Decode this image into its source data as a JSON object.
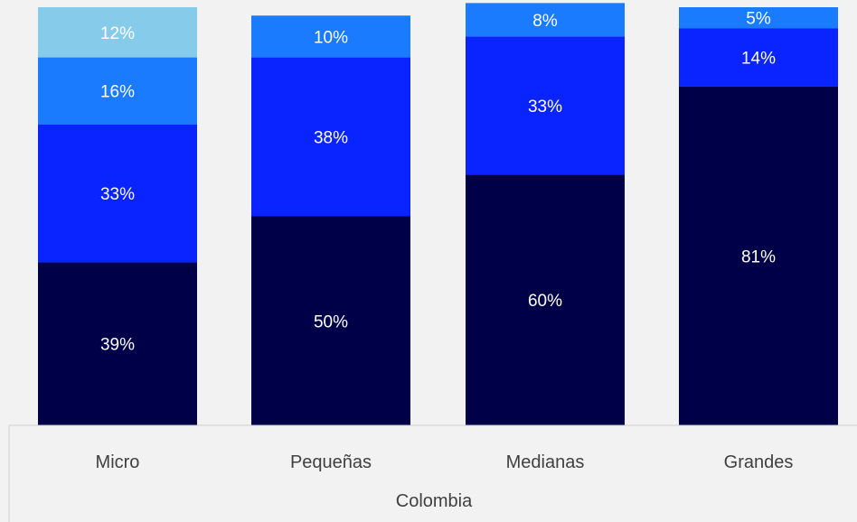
{
  "chart_data": {
    "type": "bar",
    "stacked": true,
    "categories": [
      "Micro",
      "Pequeñas",
      "Medianas",
      "Grandes"
    ],
    "group_label": "Colombia",
    "series": [
      {
        "color": "#000048",
        "values": [
          39,
          50,
          60,
          81
        ],
        "labels": [
          "39%",
          "50%",
          "60%",
          "81%"
        ]
      },
      {
        "color": "#0a24ff",
        "values": [
          33,
          38,
          33,
          14
        ],
        "labels": [
          "33%",
          "38%",
          "33%",
          "14%"
        ]
      },
      {
        "color": "#1a7bff",
        "values": [
          16,
          10,
          8,
          5
        ],
        "labels": [
          "16%",
          "10%",
          "8%",
          "5%"
        ]
      },
      {
        "color": "#87cbeb",
        "values": [
          12,
          0,
          0,
          0
        ],
        "labels": [
          "12%",
          "",
          "",
          ""
        ]
      }
    ],
    "ylim": [
      0,
      100
    ],
    "grid": false,
    "legend": "none"
  }
}
